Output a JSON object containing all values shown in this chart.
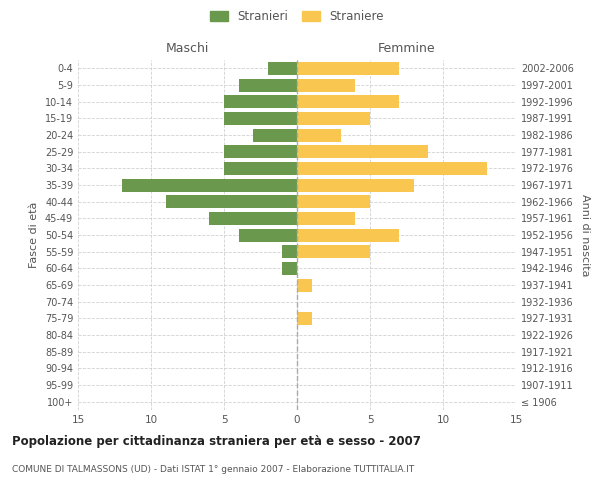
{
  "age_groups": [
    "100+",
    "95-99",
    "90-94",
    "85-89",
    "80-84",
    "75-79",
    "70-74",
    "65-69",
    "60-64",
    "55-59",
    "50-54",
    "45-49",
    "40-44",
    "35-39",
    "30-34",
    "25-29",
    "20-24",
    "15-19",
    "10-14",
    "5-9",
    "0-4"
  ],
  "birth_years": [
    "≤ 1906",
    "1907-1911",
    "1912-1916",
    "1917-1921",
    "1922-1926",
    "1927-1931",
    "1932-1936",
    "1937-1941",
    "1942-1946",
    "1947-1951",
    "1952-1956",
    "1957-1961",
    "1962-1966",
    "1967-1971",
    "1972-1976",
    "1977-1981",
    "1982-1986",
    "1987-1991",
    "1992-1996",
    "1997-2001",
    "2002-2006"
  ],
  "males": [
    0,
    0,
    0,
    0,
    0,
    0,
    0,
    0,
    1,
    1,
    4,
    6,
    9,
    12,
    5,
    5,
    3,
    5,
    5,
    4,
    2
  ],
  "females": [
    0,
    0,
    0,
    0,
    0,
    1,
    0,
    1,
    0,
    5,
    7,
    4,
    5,
    8,
    13,
    9,
    3,
    5,
    7,
    4,
    7
  ],
  "male_color": "#6a994e",
  "female_color": "#f9c74f",
  "male_label": "Stranieri",
  "female_label": "Straniere",
  "title": "Popolazione per cittadinanza straniera per età e sesso - 2007",
  "subtitle": "COMUNE DI TALMASSONS (UD) - Dati ISTAT 1° gennaio 2007 - Elaborazione TUTTITALIA.IT",
  "xlabel_left": "Maschi",
  "xlabel_right": "Femmine",
  "ylabel_left": "Fasce di età",
  "ylabel_right": "Anni di nascita",
  "xlim": 15,
  "background_color": "#ffffff",
  "grid_color": "#cccccc",
  "text_color": "#555555"
}
